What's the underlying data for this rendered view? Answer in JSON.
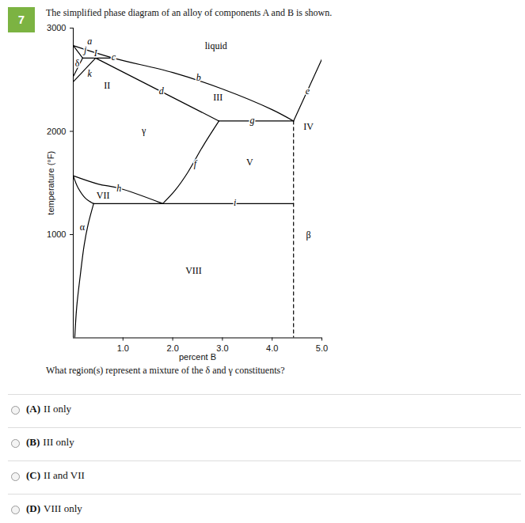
{
  "question": {
    "number": "7",
    "statement": "The simplified phase diagram of an alloy of components A and B is shown.",
    "prompt": "What region(s) represent a mixture of the δ and γ constituents?",
    "options": [
      {
        "letter": "(A)",
        "text": "II only"
      },
      {
        "letter": "(B)",
        "text": "III only"
      },
      {
        "letter": "(C)",
        "text": "II and VII"
      },
      {
        "letter": "(D)",
        "text": "VIII only"
      }
    ]
  },
  "chart_data": {
    "type": "phase_diagram",
    "x_label": "percent B",
    "y_label": "temperature (°F)",
    "xlim": [
      0,
      5
    ],
    "ylim": [
      0,
      3000
    ],
    "xticks": [
      {
        "value": 1,
        "label": "1.0"
      },
      {
        "value": 2,
        "label": "2.0"
      },
      {
        "value": 3,
        "label": "3.0"
      },
      {
        "value": 4,
        "label": "4.0"
      },
      {
        "value": 5,
        "label": "5.0"
      }
    ],
    "yticks": [
      1000,
      2000,
      3000
    ],
    "color": "#000000",
    "lines": [
      {
        "points": [
          [
            0,
            2830
          ],
          [
            0.8,
            2710
          ],
          [
            2,
            2570
          ],
          [
            3,
            2410
          ],
          [
            4,
            2210
          ],
          [
            4.43,
            2100
          ]
        ],
        "line_style": "solid"
      },
      {
        "points": [
          [
            4.43,
            2100
          ],
          [
            5,
            2700
          ]
        ],
        "line_style": "solid"
      },
      {
        "points": [
          [
            0,
            2830
          ],
          [
            0.19,
            2710
          ]
        ],
        "line_style": "solid"
      },
      {
        "points": [
          [
            0.19,
            2710
          ],
          [
            0.8,
            2710
          ]
        ],
        "line_style": "solid"
      },
      {
        "points": [
          [
            0.45,
            2710
          ],
          [
            2.93,
            2100
          ]
        ],
        "line_style": "solid"
      },
      {
        "points": [
          [
            0.19,
            2710
          ],
          [
            0,
            2530
          ]
        ],
        "line_style": "solid"
      },
      {
        "points": [
          [
            0.45,
            2710
          ],
          [
            0,
            2480
          ]
        ],
        "line_style": "solid"
      },
      {
        "points": [
          [
            2.93,
            2100
          ],
          [
            4.43,
            2100
          ]
        ],
        "line_style": "solid"
      },
      {
        "points": [
          [
            2.93,
            2100
          ],
          [
            2.6,
            1850
          ],
          [
            2.3,
            1600
          ],
          [
            2.05,
            1430
          ],
          [
            1.8,
            1300
          ]
        ],
        "line_style": "solid"
      },
      {
        "points": [
          [
            0.41,
            1300
          ],
          [
            4.43,
            1300
          ]
        ],
        "line_style": "solid"
      },
      {
        "points": [
          [
            0,
            1570
          ],
          [
            0.5,
            1490
          ],
          [
            0.92,
            1450
          ],
          [
            1.8,
            1300
          ]
        ],
        "line_style": "solid"
      },
      {
        "points": [
          [
            0,
            1570
          ],
          [
            0.1,
            1450
          ],
          [
            0.25,
            1350
          ],
          [
            0.41,
            1300
          ]
        ],
        "line_style": "solid"
      },
      {
        "points": [
          [
            0.41,
            1300
          ],
          [
            0.3,
            1100
          ],
          [
            0.22,
            900
          ],
          [
            0.14,
            600
          ],
          [
            0.07,
            300
          ],
          [
            0.03,
            0
          ]
        ],
        "line_style": "solid"
      },
      {
        "points": [
          [
            4.43,
            2100
          ],
          [
            4.43,
            0
          ]
        ],
        "line_style": "dashed"
      }
    ],
    "region_labels": [
      {
        "text": "liquid",
        "x": 2.87,
        "y": 2824
      },
      {
        "text": "δ",
        "x": 0.08,
        "y": 2655
      },
      {
        "text": "II",
        "x": 0.68,
        "y": 2440
      },
      {
        "text": "γ",
        "x": 1.42,
        "y": 2004
      },
      {
        "text": "III",
        "x": 2.91,
        "y": 2326
      },
      {
        "text": "IV",
        "x": 4.73,
        "y": 2042
      },
      {
        "text": "V",
        "x": 3.55,
        "y": 1697
      },
      {
        "text": "VII",
        "x": 0.6,
        "y": 1375
      },
      {
        "text": "α",
        "x": 0.18,
        "y": 1070
      },
      {
        "text": "β",
        "x": 4.73,
        "y": 993
      },
      {
        "text": "VIII",
        "x": 2.42,
        "y": 647
      }
    ],
    "point_labels": [
      {
        "text": "a",
        "x": 0.33,
        "y": 2870
      },
      {
        "text": "j",
        "x": 0.24,
        "y": 2785
      },
      {
        "text": "I",
        "x": 0.45,
        "y": 2760
      },
      {
        "text": "k",
        "x": 0.33,
        "y": 2555
      },
      {
        "text": "c",
        "x": 0.81,
        "y": 2716
      },
      {
        "text": "b",
        "x": 2.52,
        "y": 2517
      },
      {
        "text": "d",
        "x": 1.77,
        "y": 2387
      },
      {
        "text": "e",
        "x": 4.71,
        "y": 2387
      },
      {
        "text": "g",
        "x": 3.6,
        "y": 2103
      },
      {
        "text": "f",
        "x": 2.45,
        "y": 1682
      },
      {
        "text": "h",
        "x": 0.92,
        "y": 1444
      },
      {
        "text": "i",
        "x": 3.25,
        "y": 1307
      }
    ]
  }
}
